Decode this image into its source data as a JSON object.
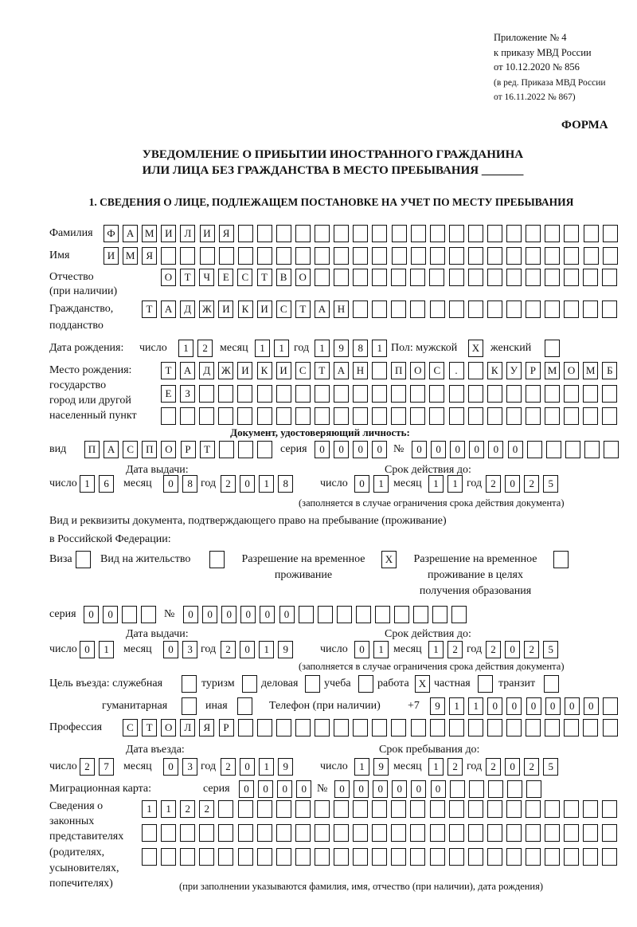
{
  "header": {
    "appendix": "Приложение № 4",
    "order": "к приказу МВД России",
    "order_date": "от 10.12.2020 № 856",
    "revision1": "(в ред. Приказа МВД России",
    "revision2": "от 16.11.2022 № 867)",
    "form_label": "ФОРМА",
    "title1": "УВЕДОМЛЕНИЕ О ПРИБЫТИИ ИНОСТРАННОГО ГРАЖДАНИНА",
    "title2": "ИЛИ ЛИЦА БЕЗ ГРАЖДАНСТВА В МЕСТО ПРЕБЫВАНИЯ _______",
    "section1": "1. СВЕДЕНИЯ О ЛИЦЕ, ПОДЛЕЖАЩЕМ ПОСТАНОВКЕ НА УЧЕТ ПО МЕСТУ ПРЕБЫВАНИЯ"
  },
  "labels": {
    "surname": "Фамилия",
    "name": "Имя",
    "patronymic": "Отчество",
    "patronymic2": "(при наличии)",
    "citizenship": "Гражданство,",
    "citizenship2": "подданство",
    "birth_date": "Дата рождения:",
    "day": "число",
    "month": "месяц",
    "year": "год",
    "sex": "Пол: мужской",
    "female": "женский",
    "birth_place": "Место рождения:",
    "birth_place2": "государство",
    "birth_place3": "город или другой",
    "birth_place4": "населенный пункт",
    "id_doc": "Документ, удостоверяющий личность:",
    "kind": "вид",
    "series": "серия",
    "number": "№",
    "issue_date": "Дата выдачи:",
    "valid_until": "Срок действия до:",
    "validity_note": "(заполняется в случае ограничения срока действия документа)",
    "residence_doc1": "Вид и реквизиты документа, подтверждающего право на пребывание (проживание)",
    "residence_doc2": "в Российской Федерации:",
    "visa": "Виза",
    "residence_permit": "Вид на жительство",
    "temp_permit1": "Разрешение на временное",
    "temp_permit2": "проживание",
    "edu_permit1": "Разрешение на временное",
    "edu_permit2": "проживание в целях",
    "edu_permit3": "получения образования",
    "purpose": "Цель въезда: служебная",
    "tourism": "туризм",
    "business": "деловая",
    "study": "учеба",
    "work": "работа",
    "private": "частная",
    "transit": "транзит",
    "humanitarian": "гуманитарная",
    "other": "иная",
    "phone": "Телефон (при наличии)",
    "phone_prefix": "+7",
    "profession": "Профессия",
    "entry_date": "Дата въезда:",
    "stay_until": "Срок пребывания до:",
    "migration_card": "Миграционная карта:",
    "reps1": "Сведения о",
    "reps2": "законных",
    "reps3": "представителях",
    "reps4": "(родителях,",
    "reps5": "усыновителях,",
    "reps6": "попечителях)",
    "reps_note": "(при заполнении указываются фамилия, имя, отчество (при наличии), дата рождения)"
  },
  "person": {
    "surname": [
      "Ф",
      "А",
      "М",
      "И",
      "Л",
      "И",
      "Я",
      "",
      "",
      "",
      "",
      "",
      "",
      "",
      "",
      "",
      "",
      "",
      "",
      "",
      "",
      "",
      "",
      "",
      "",
      "",
      ""
    ],
    "name": [
      "И",
      "М",
      "Я",
      "",
      "",
      "",
      "",
      "",
      "",
      "",
      "",
      "",
      "",
      "",
      "",
      "",
      "",
      "",
      "",
      "",
      "",
      "",
      "",
      "",
      "",
      "",
      ""
    ],
    "patronymic": [
      "О",
      "Т",
      "Ч",
      "Е",
      "С",
      "Т",
      "В",
      "О",
      "",
      "",
      "",
      "",
      "",
      "",
      "",
      "",
      "",
      "",
      "",
      "",
      "",
      "",
      "",
      ""
    ],
    "citizenship": [
      "Т",
      "А",
      "Д",
      "Ж",
      "И",
      "К",
      "И",
      "С",
      "Т",
      "А",
      "Н",
      "",
      "",
      "",
      "",
      "",
      "",
      "",
      "",
      "",
      "",
      "",
      "",
      "",
      ""
    ],
    "birth_day": [
      "1",
      "2"
    ],
    "birth_month": [
      "1",
      "1"
    ],
    "birth_year": [
      "1",
      "9",
      "8",
      "1"
    ],
    "sex_male": [
      "X"
    ],
    "sex_female": [
      ""
    ],
    "birth_place1": [
      "Т",
      "А",
      "Д",
      "Ж",
      "И",
      "К",
      "И",
      "С",
      "Т",
      "А",
      "Н",
      "",
      "П",
      "О",
      "С",
      ".",
      "",
      "К",
      "У",
      "Р",
      "М",
      "О",
      "М",
      "Б"
    ],
    "birth_place2": [
      "Е",
      "З",
      "",
      "",
      "",
      "",
      "",
      "",
      "",
      "",
      "",
      "",
      "",
      "",
      "",
      "",
      "",
      "",
      "",
      "",
      "",
      "",
      "",
      ""
    ],
    "birth_place3": [
      "",
      "",
      "",
      "",
      "",
      "",
      "",
      "",
      "",
      "",
      "",
      "",
      "",
      "",
      "",
      "",
      "",
      "",
      "",
      "",
      "",
      "",
      "",
      ""
    ]
  },
  "id_document": {
    "kind": [
      "П",
      "А",
      "С",
      "П",
      "О",
      "Р",
      "Т",
      "",
      "",
      ""
    ],
    "series": [
      "0",
      "0",
      "0",
      "0"
    ],
    "number": [
      "0",
      "0",
      "0",
      "0",
      "0",
      "0",
      "",
      "",
      "",
      "",
      ""
    ],
    "issue_day": [
      "1",
      "6"
    ],
    "issue_month": [
      "0",
      "8"
    ],
    "issue_year": [
      "2",
      "0",
      "1",
      "8"
    ],
    "valid_day": [
      "0",
      "1"
    ],
    "valid_month": [
      "1",
      "1"
    ],
    "valid_year": [
      "2",
      "0",
      "2",
      "5"
    ]
  },
  "residence_document": {
    "visa": [
      ""
    ],
    "residence_permit": [
      ""
    ],
    "temp_permit": [
      "X"
    ],
    "edu_permit": [
      ""
    ],
    "series": [
      "0",
      "0",
      "",
      ""
    ],
    "number": [
      "0",
      "0",
      "0",
      "0",
      "0",
      "0",
      "",
      "",
      "",
      "",
      "",
      "",
      "",
      "",
      ""
    ],
    "issue_day": [
      "0",
      "1"
    ],
    "issue_month": [
      "0",
      "3"
    ],
    "issue_year": [
      "2",
      "0",
      "1",
      "9"
    ],
    "valid_day": [
      "0",
      "1"
    ],
    "valid_month": [
      "1",
      "2"
    ],
    "valid_year": [
      "2",
      "0",
      "2",
      "5"
    ]
  },
  "purpose": {
    "official": [
      ""
    ],
    "tourism": [
      ""
    ],
    "business": [
      ""
    ],
    "study": [
      ""
    ],
    "work": [
      "X"
    ],
    "private": [
      ""
    ],
    "transit": [
      ""
    ],
    "humanitarian": [
      ""
    ],
    "other": [
      ""
    ]
  },
  "phone": [
    "9",
    "1",
    "1",
    "0",
    "0",
    "0",
    "0",
    "0",
    "0",
    ""
  ],
  "profession": [
    "С",
    "Т",
    "О",
    "Л",
    "Я",
    "Р",
    "",
    "",
    "",
    "",
    "",
    "",
    "",
    "",
    "",
    "",
    "",
    "",
    "",
    "",
    "",
    "",
    "",
    "",
    "",
    ""
  ],
  "entry": {
    "entry_day": [
      "2",
      "7"
    ],
    "entry_month": [
      "0",
      "3"
    ],
    "entry_year": [
      "2",
      "0",
      "1",
      "9"
    ],
    "stay_day": [
      "1",
      "9"
    ],
    "stay_month": [
      "1",
      "2"
    ],
    "stay_year": [
      "2",
      "0",
      "2",
      "5"
    ]
  },
  "migration_card": {
    "series": [
      "0",
      "0",
      "0",
      "0"
    ],
    "number": [
      "0",
      "0",
      "0",
      "0",
      "0",
      "0",
      "",
      "",
      "",
      "",
      ""
    ]
  },
  "representatives": {
    "row1": [
      "1",
      "1",
      "2",
      "2",
      "",
      "",
      "",
      "",
      "",
      "",
      "",
      "",
      "",
      "",
      "",
      "",
      "",
      "",
      "",
      "",
      "",
      "",
      "",
      "",
      ""
    ],
    "row2": [
      "",
      "",
      "",
      "",
      "",
      "",
      "",
      "",
      "",
      "",
      "",
      "",
      "",
      "",
      "",
      "",
      "",
      "",
      "",
      "",
      "",
      "",
      "",
      "",
      ""
    ],
    "row3": [
      "",
      "",
      "",
      "",
      "",
      "",
      "",
      "",
      "",
      "",
      "",
      "",
      "",
      "",
      "",
      "",
      "",
      "",
      "",
      "",
      "",
      "",
      "",
      "",
      ""
    ]
  }
}
